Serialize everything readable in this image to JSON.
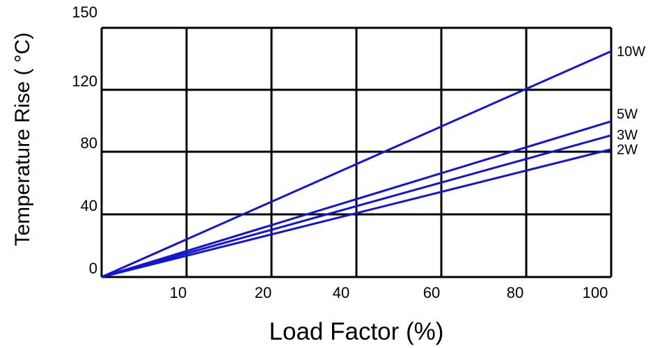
{
  "chart_data": {
    "type": "line",
    "title": "",
    "xlabel": "Load Factor (%)",
    "ylabel": "Temperature Rise ( °C)",
    "x_tick_labels": [
      "10",
      "20",
      "40",
      "60",
      "80",
      "100"
    ],
    "y_tick_labels": [
      "0",
      "40",
      "80",
      "120",
      "150"
    ],
    "grid": true,
    "series": [
      {
        "name": "10W",
        "x": [
          0,
          100
        ],
        "y": [
          0,
          145
        ],
        "color": "#1414d2"
      },
      {
        "name": "5W",
        "x": [
          0,
          100
        ],
        "y": [
          0,
          100
        ],
        "color": "#1414d2"
      },
      {
        "name": "3W",
        "x": [
          0,
          100
        ],
        "y": [
          0,
          91
        ],
        "color": "#1414d2"
      },
      {
        "name": "2W",
        "x": [
          0,
          100
        ],
        "y": [
          0,
          82
        ],
        "color": "#1414d2"
      }
    ],
    "legend": "right-end labels"
  }
}
